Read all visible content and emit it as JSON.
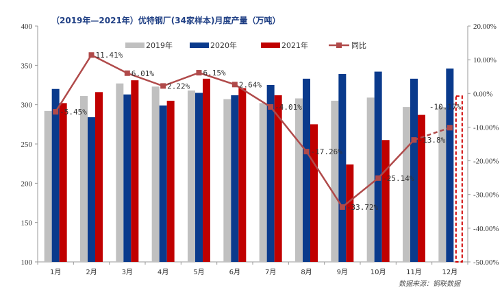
{
  "chart_data": {
    "type": "bar",
    "title": "（2019年—2021年）优特钢厂(34家样本)月度产量（万吨）",
    "source": "数据来源：钢联数据",
    "categories": [
      "1月",
      "2月",
      "3月",
      "4月",
      "5月",
      "6月",
      "7月",
      "8月",
      "9月",
      "10月",
      "11月",
      "12月"
    ],
    "series": [
      {
        "name": "2019年",
        "type": "bar",
        "axis": "left",
        "color": "#c0c0c0",
        "values": [
          292,
          311,
          327,
          323,
          318,
          307,
          302,
          308,
          305,
          309,
          297,
          297
        ]
      },
      {
        "name": "2020年",
        "type": "bar",
        "axis": "left",
        "color": "#0a3a8c",
        "values": [
          320,
          284,
          313,
          299,
          315,
          312,
          325,
          333,
          339,
          342,
          333,
          346
        ]
      },
      {
        "name": "2021年",
        "type": "bar",
        "axis": "left",
        "color": "#c00000",
        "values": [
          302,
          316,
          331,
          305,
          333,
          321,
          312,
          275,
          224,
          255,
          287,
          null
        ]
      },
      {
        "name": "同比",
        "type": "line",
        "axis": "right",
        "color": "#b04a4a",
        "values": [
          -5.45,
          11.41,
          6.01,
          2.22,
          6.15,
          2.64,
          -4.01,
          -17.26,
          -33.72,
          -25.14,
          -13.8,
          -10.17
        ],
        "labels": [
          "-5.45%",
          "11.41%",
          "6.01%",
          "2.22%",
          "6.15%",
          "2.64%",
          "-4.01%",
          "-17.26%",
          "-33.72%",
          "-25.14%",
          "-13.8%",
          "-10.17%"
        ]
      }
    ],
    "y_left": {
      "min": 100,
      "max": 400,
      "ticks": [
        "100",
        "150",
        "200",
        "250",
        "300",
        "350",
        "400"
      ]
    },
    "y_right": {
      "min": -50,
      "max": 20,
      "ticks": [
        "20.00%",
        "10.00%",
        "0.00%",
        "-10.00%",
        "-20.00%",
        "-30.00%",
        "-40.00%",
        "-50.00%"
      ]
    },
    "legend_position": "top",
    "gridlines": false,
    "highlight": {
      "category": "12月",
      "style": "dashed-red-box"
    }
  },
  "colors": {
    "title": "#1f3f84",
    "axis": "#999999",
    "highlight": "#d00000"
  }
}
